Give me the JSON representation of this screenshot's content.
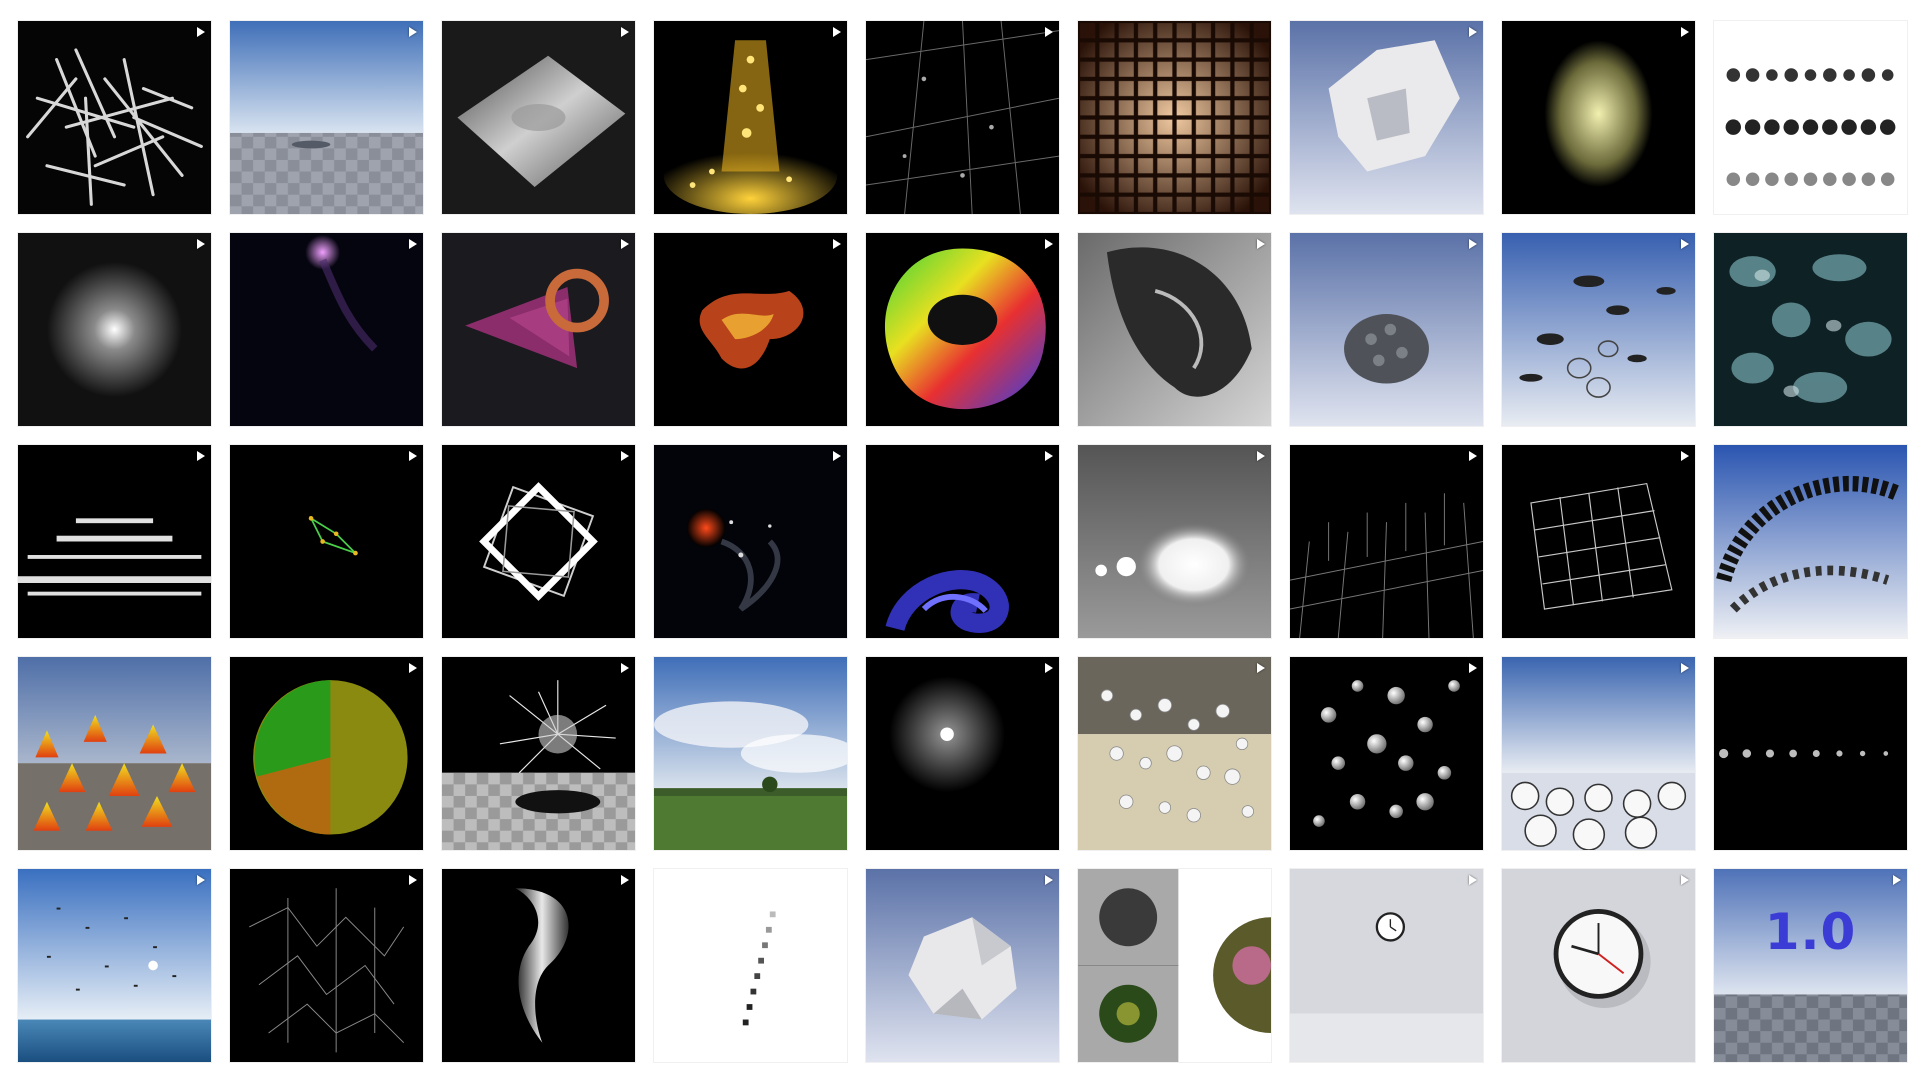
{
  "gallery": {
    "columns": 9,
    "rows": 5,
    "tiles": [
      {
        "art": "white-tubes-swarm",
        "play": true
      },
      {
        "art": "sky-checker-floor",
        "play": true
      },
      {
        "art": "gray-terrain-mesh",
        "play": true
      },
      {
        "art": "golden-particle-fountain",
        "play": true
      },
      {
        "art": "wire-lines-dots",
        "play": true
      },
      {
        "art": "amber-lattice-grid",
        "play": true
      },
      {
        "art": "white-crumpled-form",
        "play": true
      },
      {
        "art": "pale-yellow-particle-cloud",
        "play": true
      },
      {
        "art": "gray-dot-rows",
        "play": false
      },
      {
        "art": "white-particle-burst",
        "play": true
      },
      {
        "art": "purple-comet",
        "play": true
      },
      {
        "art": "purple-spiral-shell",
        "play": true
      },
      {
        "art": "orange-fractal-cluster",
        "play": true
      },
      {
        "art": "rainbow-torus",
        "play": true
      },
      {
        "art": "gray-shattered-mass",
        "play": true
      },
      {
        "art": "gray-stone-pile",
        "play": true
      },
      {
        "art": "flying-disks-sky",
        "play": true
      },
      {
        "art": "teal-noise-texture",
        "play": false
      },
      {
        "art": "white-particle-waves",
        "play": true
      },
      {
        "art": "green-polyline",
        "play": true
      },
      {
        "art": "white-square-frames",
        "play": true
      },
      {
        "art": "red-glow-smoke",
        "play": true
      },
      {
        "art": "blue-swirl",
        "play": true
      },
      {
        "art": "white-bright-blobs",
        "play": true
      },
      {
        "art": "gray-line-field",
        "play": true
      },
      {
        "art": "wire-cube",
        "play": true
      },
      {
        "art": "disk-swarm-sky",
        "play": false
      },
      {
        "art": "orange-cones",
        "play": false
      },
      {
        "art": "green-yellow-sphere",
        "play": true
      },
      {
        "art": "white-hair-ball",
        "play": true
      },
      {
        "art": "landscape-sky",
        "play": false
      },
      {
        "art": "glowing-point",
        "play": true
      },
      {
        "art": "floating-balls-room",
        "play": true
      },
      {
        "art": "white-balls-dark",
        "play": true
      },
      {
        "art": "clock-field",
        "play": true
      },
      {
        "art": "dot-row-dark",
        "play": false
      },
      {
        "art": "birds-over-sea",
        "play": true
      },
      {
        "art": "white-line-tangle",
        "play": true
      },
      {
        "art": "white-ribbon-spiral",
        "play": true
      },
      {
        "art": "diagonal-squares",
        "play": false
      },
      {
        "art": "low-poly-ball",
        "play": true
      },
      {
        "art": "planet-spheres",
        "play": false
      },
      {
        "art": "small-wall-clock",
        "play": true
      },
      {
        "art": "large-wall-clock",
        "play": true
      },
      {
        "art": "version-text",
        "play": true
      }
    ]
  },
  "version_text": "1.0",
  "colors": {
    "background": "#ffffff",
    "version_text": "#3b3bd6",
    "play_icon": "#ffffff"
  }
}
